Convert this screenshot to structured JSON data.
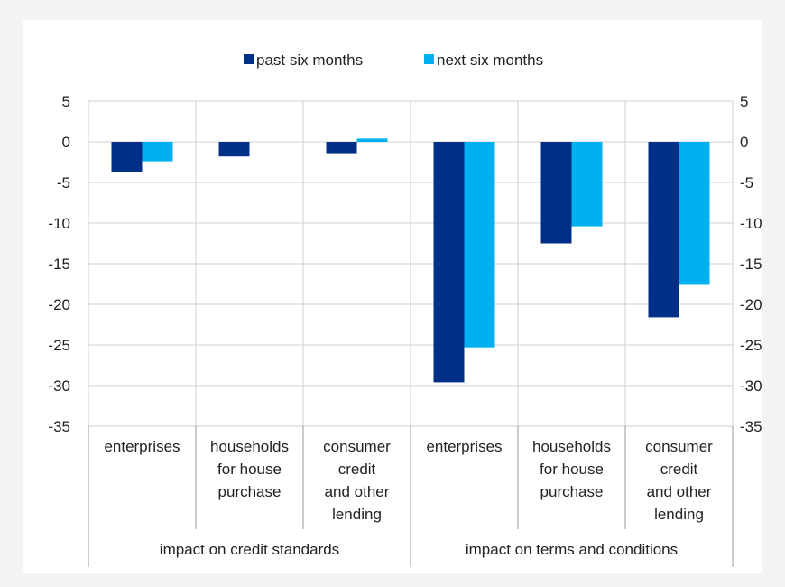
{
  "chart_data": {
    "type": "bar",
    "title": "",
    "xlabel": "",
    "ylabel": "",
    "ylim": [
      -35,
      5
    ],
    "yticks": [
      5,
      0,
      -5,
      -10,
      -15,
      -20,
      -25,
      -30,
      -35
    ],
    "ytick_labels": [
      "5",
      "0",
      "-5",
      "-10",
      "-15",
      "-20",
      "-25",
      "-30",
      "-35"
    ],
    "grid": true,
    "legend_position": "top-center",
    "categories": [
      [
        "enterprises"
      ],
      [
        "households",
        "for house",
        "purchase"
      ],
      [
        "consumer",
        "credit",
        "and other",
        "lending"
      ],
      [
        "enterprises"
      ],
      [
        "households",
        "for house",
        "purchase"
      ],
      [
        "consumer",
        "credit",
        "and other",
        "lending"
      ]
    ],
    "groups": [
      {
        "label": "impact on credit standards",
        "span": 3
      },
      {
        "label": "impact on terms and conditions",
        "span": 3
      }
    ],
    "series": [
      {
        "name": "past six months",
        "color": "#002f87",
        "values": [
          -3.7,
          -1.8,
          -1.4,
          -29.6,
          -12.5,
          -21.6
        ]
      },
      {
        "name": "next six months",
        "color": "#00b0f0",
        "values": [
          -2.4,
          0.0,
          0.4,
          -25.3,
          -10.4,
          -17.6
        ]
      }
    ]
  }
}
